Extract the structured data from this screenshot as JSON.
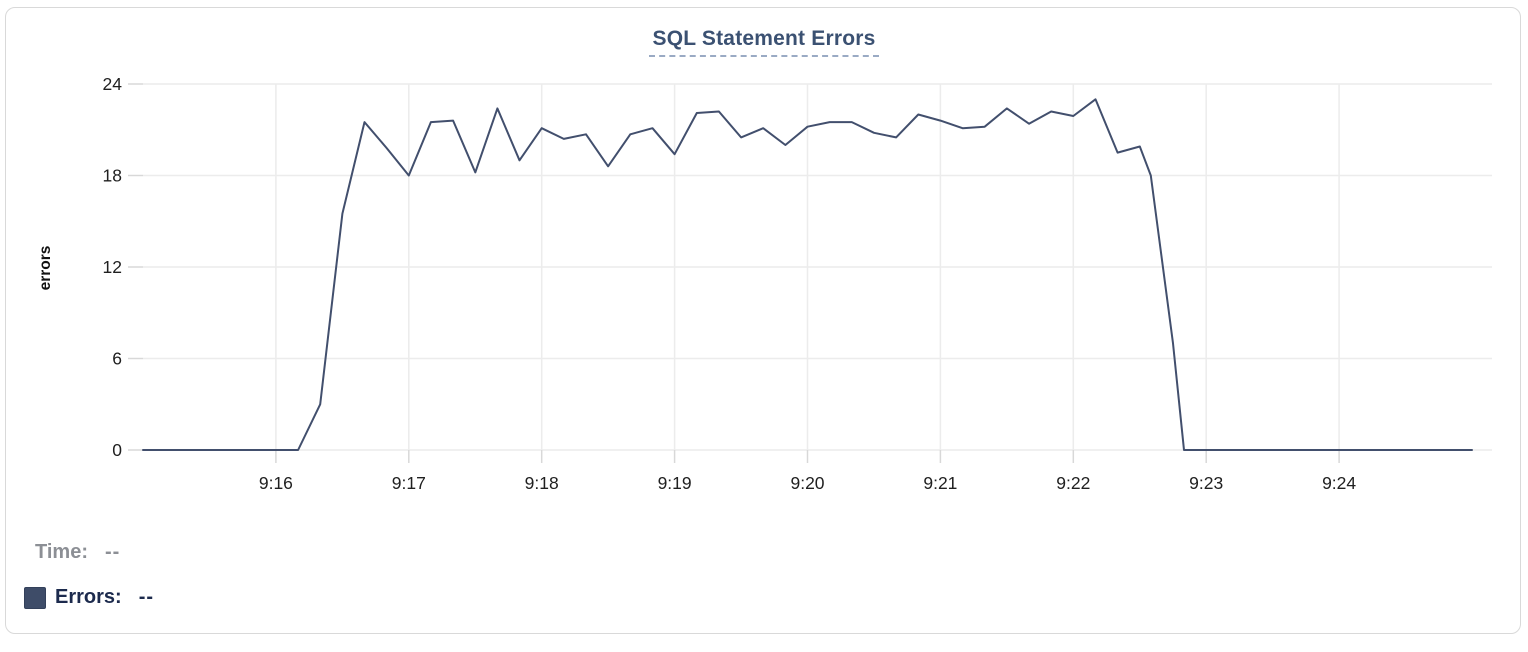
{
  "chart": {
    "title": "SQL Statement Errors",
    "y_axis": {
      "label": "errors"
    },
    "legend": {
      "time_label": "Time:",
      "time_value": "--",
      "errors_label": "Errors:",
      "errors_value": "--"
    }
  },
  "colors": {
    "line": "#424f6d",
    "title": "#3b5172",
    "title_underline": "#9aaac4",
    "legend_time_text": "#8c8f95",
    "legend_errors_text": "#1c2a4d",
    "swatch": "#3e4c68",
    "gridline": "#ececec",
    "tick_mark": "#d8d8d8",
    "axis_text": "#202020",
    "card_border": "#d9d9d9"
  },
  "chart_data": {
    "type": "line",
    "title": "SQL Statement Errors",
    "xlabel": "",
    "ylabel": "errors",
    "ylim": [
      0,
      24
    ],
    "y_ticks": [
      0,
      6,
      12,
      18,
      24
    ],
    "x_range_labels": [
      "9:15:00",
      "9:25:00"
    ],
    "x_ticks": [
      {
        "t": 60,
        "label": "9:16"
      },
      {
        "t": 120,
        "label": "9:17"
      },
      {
        "t": 180,
        "label": "9:18"
      },
      {
        "t": 240,
        "label": "9:19"
      },
      {
        "t": 300,
        "label": "9:20"
      },
      {
        "t": 360,
        "label": "9:21"
      },
      {
        "t": 420,
        "label": "9:22"
      },
      {
        "t": 480,
        "label": "9:23"
      },
      {
        "t": 540,
        "label": "9:24"
      }
    ],
    "grid": true,
    "legend_position": "bottom-left",
    "series": [
      {
        "name": "Errors",
        "color": "#424f6d",
        "points_seconds_after_9_15_vs_errors": [
          [
            0,
            0
          ],
          [
            70,
            0
          ],
          [
            80,
            3
          ],
          [
            90,
            15.5
          ],
          [
            100,
            21.5
          ],
          [
            110,
            19.8
          ],
          [
            120,
            18
          ],
          [
            130,
            21.5
          ],
          [
            140,
            21.6
          ],
          [
            150,
            18.2
          ],
          [
            160,
            22.4
          ],
          [
            170,
            19
          ],
          [
            180,
            21.1
          ],
          [
            190,
            20.4
          ],
          [
            200,
            20.7
          ],
          [
            210,
            18.6
          ],
          [
            220,
            20.7
          ],
          [
            230,
            21.1
          ],
          [
            240,
            19.4
          ],
          [
            250,
            22.1
          ],
          [
            260,
            22.2
          ],
          [
            270,
            20.5
          ],
          [
            280,
            21.1
          ],
          [
            290,
            20
          ],
          [
            300,
            21.2
          ],
          [
            310,
            21.5
          ],
          [
            320,
            21.5
          ],
          [
            330,
            20.8
          ],
          [
            340,
            20.5
          ],
          [
            350,
            22
          ],
          [
            360,
            21.6
          ],
          [
            370,
            21.1
          ],
          [
            380,
            21.2
          ],
          [
            390,
            22.4
          ],
          [
            400,
            21.4
          ],
          [
            410,
            22.2
          ],
          [
            420,
            21.9
          ],
          [
            430,
            23
          ],
          [
            440,
            19.5
          ],
          [
            450,
            19.9
          ],
          [
            455,
            18
          ],
          [
            465,
            7
          ],
          [
            470,
            0
          ],
          [
            540,
            0
          ],
          [
            600,
            0
          ]
        ]
      }
    ]
  }
}
